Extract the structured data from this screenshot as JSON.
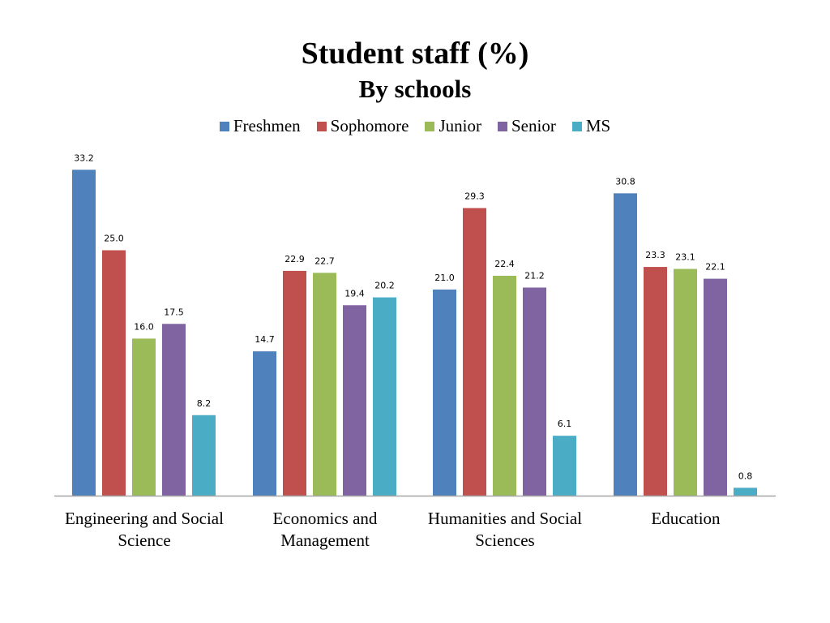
{
  "chart_data": {
    "type": "bar",
    "title": "Student staff (%)",
    "subtitle": "By schools",
    "xlabel": "",
    "ylabel": "",
    "ylim": [
      0,
      35
    ],
    "grid": false,
    "legend_position": "top-center",
    "categories": [
      "Engineering and Social Science",
      "Economics and Management",
      "Humanities and Social Sciences",
      "Education"
    ],
    "series": [
      {
        "name": "Freshmen",
        "color": "#4F81BD",
        "values": [
          33.2,
          14.7,
          21.0,
          30.8
        ],
        "labels": [
          "33.2",
          "14.7",
          "21.0",
          "30.8"
        ]
      },
      {
        "name": "Sophomore",
        "color": "#C0504D",
        "values": [
          25.0,
          22.9,
          29.3,
          23.3
        ],
        "labels": [
          "25.0",
          "22.9",
          "29.3",
          "23.3"
        ]
      },
      {
        "name": "Junior",
        "color": "#9BBB59",
        "values": [
          16.0,
          22.7,
          22.4,
          23.1
        ],
        "labels": [
          "16.0",
          "22.7",
          "22.4",
          "23.1"
        ]
      },
      {
        "name": "Senior",
        "color": "#8064A2",
        "values": [
          17.5,
          19.4,
          21.2,
          22.1
        ],
        "labels": [
          "17.5",
          "19.4",
          "21.2",
          "22.1"
        ]
      },
      {
        "name": "MS",
        "color": "#4BACC6",
        "values": [
          8.2,
          20.2,
          6.1,
          0.8
        ],
        "labels": [
          "8.2",
          "20.2",
          "6.1",
          "0.8"
        ]
      }
    ]
  }
}
